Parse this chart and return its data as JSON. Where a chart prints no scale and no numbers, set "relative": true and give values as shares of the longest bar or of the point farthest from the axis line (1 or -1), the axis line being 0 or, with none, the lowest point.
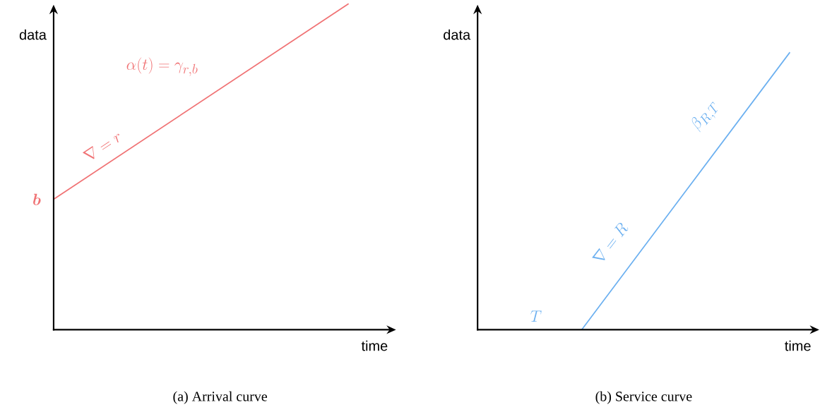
{
  "chart_data": [
    {
      "type": "line",
      "relative": true,
      "xlabel": "time",
      "ylabel": "data",
      "categories": [
        null,
        null
      ],
      "series": [
        {
          "color": "#f07274",
          "values": [
            0.4,
            1
          ]
        }
      ],
      "annotations": [
        "\\alpha(t) = \\gamma_{r,b}",
        "\\nabla = r",
        "\\boldsymbol{b}",
        "(a) Arrival curve"
      ]
    },
    {
      "type": "line",
      "relative": true,
      "xlabel": "time",
      "ylabel": "data",
      "categories": [
        null,
        null,
        null,
        null
      ],
      "series": [
        {
          "color": "#6cb0f0",
          "values": [
            null,
            0,
            0.5,
            1
          ]
        }
      ],
      "annotations": [
        "T",
        "\\nabla = R",
        "\\beta_{R,T}",
        "(b) Service curve"
      ]
    }
  ]
}
